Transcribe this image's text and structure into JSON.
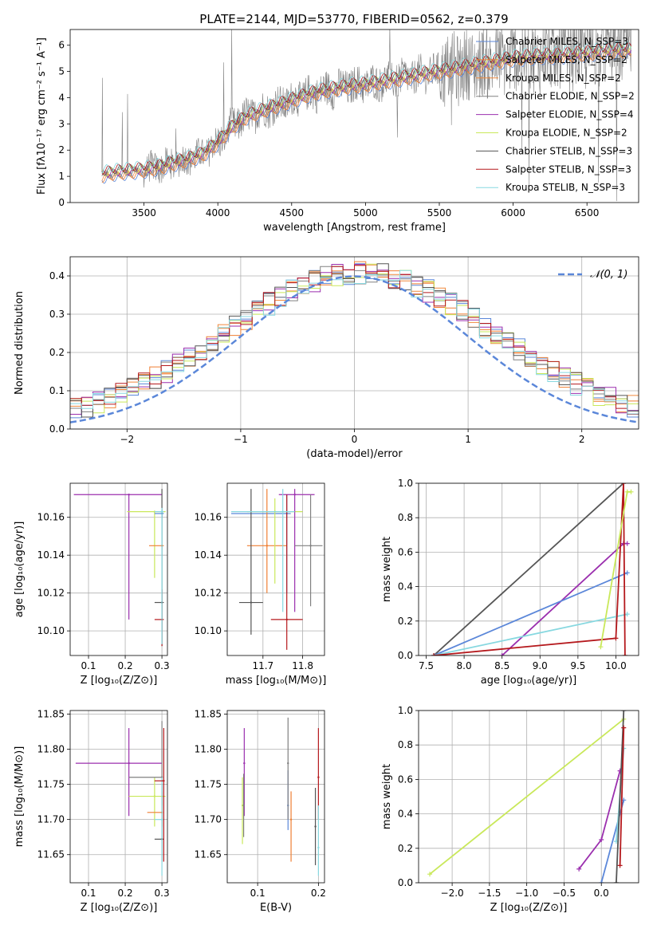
{
  "figure_title": "PLATE=2144, MJD=53770, FIBERID=0562, z=0.379",
  "colors": {
    "chabrier_miles": "#5b87d9",
    "salpeter_miles": "#ef7f33",
    "kroupa_miles": "#f0893d",
    "chabrier_elodie": "#808080",
    "salpeter_elodie": "#9b2fae",
    "kroupa_elodie": "#c9e85a",
    "chabrier_stelib": "#555555",
    "salpeter_stelib": "#b5191d",
    "kroupa_stelib": "#87d8e0",
    "gaussian": "#5b87d9",
    "grid": "#b0b0b0",
    "spectrum": "#808080"
  },
  "chart_data": [
    {
      "type": "line",
      "panel": "spectrum",
      "xlabel": "wavelength [Angstrom, rest frame]",
      "ylabel": "Flux [fλ10⁻¹⁷ erg cm⁻² s⁻¹ A⁻¹]",
      "xlim": [
        3000,
        6850
      ],
      "ylim": [
        0,
        6.6
      ],
      "xticks": [
        "3500",
        "4000",
        "4500",
        "5000",
        "5500",
        "6000",
        "6500"
      ],
      "yticks": [
        "0",
        "1",
        "2",
        "3",
        "4",
        "5",
        "6"
      ],
      "grid": false,
      "legend_position": "top-right",
      "legend": [
        "Chabrier MILES, N_SSP=3",
        "Salpeter MILES, N_SSP=2",
        "Kroupa MILES, N_SSP=2",
        "Chabrier ELODIE, N_SSP=2",
        "Salpeter ELODIE, N_SSP=4",
        "Kroupa ELODIE, N_SSP=2",
        "Chabrier STELIB, N_SSP=3",
        "Salpeter STELIB, N_SSP=3",
        "Kroupa STELIB, N_SSP=3"
      ],
      "model_continuum": {
        "x": [
          3200,
          3300,
          3400,
          3500,
          3600,
          3700,
          3800,
          3900,
          4000,
          4100,
          4200,
          4300,
          4400,
          4500,
          4600,
          4700,
          4800,
          4900,
          5000,
          5100,
          5200,
          5300,
          5400,
          5500,
          5600,
          5700,
          5800,
          5900,
          6000,
          6100,
          6200,
          6300,
          6400,
          6500,
          6600,
          6700,
          6800
        ],
        "y": [
          1.05,
          1.15,
          1.2,
          1.25,
          1.35,
          1.5,
          1.65,
          1.85,
          2.3,
          2.9,
          3.3,
          3.5,
          3.7,
          3.9,
          4.1,
          4.25,
          4.35,
          4.45,
          4.5,
          4.6,
          4.7,
          4.8,
          4.9,
          5.0,
          5.1,
          5.2,
          5.3,
          5.4,
          5.5,
          5.55,
          5.6,
          5.6,
          5.65,
          5.7,
          5.75,
          5.8,
          5.8
        ]
      }
    },
    {
      "type": "bar",
      "panel": "residual_distribution",
      "xlabel": "(data-model)/error",
      "ylabel": "Normed distribution",
      "xlim": [
        -2.5,
        2.5
      ],
      "ylim": [
        0,
        0.45
      ],
      "xticks": [
        "−2",
        "−1",
        "0",
        "1",
        "2"
      ],
      "yticks": [
        "0.0",
        "0.1",
        "0.2",
        "0.3",
        "0.4"
      ],
      "grid": true,
      "legend_position": "top-right",
      "legend": [
        "𝒩(0, 1)"
      ],
      "bin_width": 0.1,
      "gaussian": {
        "mean": 0,
        "sigma": 1
      }
    },
    {
      "type": "scatter",
      "panel": "age_vs_Z",
      "xlabel": "Z [log₁₀(Z/Z⊙)]",
      "ylabel": "age  [log₁₀(age/yr)]",
      "xlim": [
        0.05,
        0.315
      ],
      "ylim": [
        10.087,
        10.178
      ],
      "xticks": [
        "0.1",
        "0.2",
        "0.3"
      ],
      "yticks": [
        "10.10",
        "10.12",
        "10.14",
        "10.16"
      ],
      "grid": true,
      "points": [
        {
          "model": "salpeter_elodie",
          "x": 0.21,
          "y": 10.172,
          "xerr": [
            0.06,
            0.3
          ],
          "yerr": [
            10.106,
            10.172
          ]
        },
        {
          "model": "kroupa_elodie",
          "x": 0.28,
          "y": 10.163,
          "xerr": [
            0.205,
            0.31
          ],
          "yerr": [
            10.128,
            10.163
          ]
        },
        {
          "model": "chabrier_miles",
          "x": 0.3,
          "y": 10.162,
          "xerr": [
            0.28,
            0.305
          ],
          "yerr": [
            10.16,
            10.164
          ]
        },
        {
          "model": "salpeter_miles",
          "x": 0.3,
          "y": 10.145,
          "xerr": [
            0.265,
            0.305
          ],
          "yerr": [
            10.145,
            10.145
          ]
        },
        {
          "model": "chabrier_stelib",
          "x": 0.3,
          "y": 10.115,
          "xerr": [
            0.28,
            0.305
          ],
          "yerr": [
            10.092,
            10.175
          ]
        },
        {
          "model": "salpeter_stelib",
          "x": 0.3,
          "y": 10.106,
          "xerr": [
            0.28,
            0.305
          ],
          "yerr": [
            10.092,
            10.122
          ]
        },
        {
          "model": "kroupa_stelib",
          "x": 0.3,
          "y": 10.163,
          "xerr": [
            0.28,
            0.305
          ],
          "yerr": [
            10.093,
            10.165
          ]
        }
      ]
    },
    {
      "type": "scatter",
      "panel": "age_vs_mass",
      "xlabel": "mass [log₁₀(M/M⊙)]",
      "ylabel": "",
      "xlim": [
        11.61,
        11.855
      ],
      "ylim": [
        10.087,
        10.178
      ],
      "xticks": [
        "11.7",
        "11.8"
      ],
      "yticks": [
        "10.10",
        "10.12",
        "10.14",
        "10.16"
      ],
      "grid": true,
      "points": [
        {
          "model": "chabrier_miles",
          "x": 11.76,
          "y": 10.162,
          "xerr": [
            11.62,
            11.77
          ],
          "yerr": [
            10.12,
            10.172
          ]
        },
        {
          "model": "salpeter_miles",
          "x": 11.71,
          "y": 10.145,
          "xerr": [
            11.66,
            11.76
          ],
          "yerr": [
            10.12,
            10.175
          ]
        },
        {
          "model": "kroupa_elodie",
          "x": 11.73,
          "y": 10.163,
          "xerr": [
            11.66,
            11.8
          ],
          "yerr": [
            10.125,
            10.17
          ]
        },
        {
          "model": "salpeter_elodie",
          "x": 11.78,
          "y": 10.172,
          "xerr": [
            11.74,
            11.83
          ],
          "yerr": [
            10.11,
            10.175
          ]
        },
        {
          "model": "chabrier_stelib",
          "x": 11.67,
          "y": 10.115,
          "xerr": [
            11.64,
            11.7
          ],
          "yerr": [
            10.098,
            10.175
          ]
        },
        {
          "model": "salpeter_stelib",
          "x": 11.76,
          "y": 10.106,
          "xerr": [
            11.72,
            11.8
          ],
          "yerr": [
            10.09,
            10.172
          ]
        },
        {
          "model": "kroupa_stelib",
          "x": 11.75,
          "y": 10.163,
          "xerr": [
            11.62,
            11.78
          ],
          "yerr": [
            10.11,
            10.175
          ]
        },
        {
          "model": "chabrier_elodie",
          "x": 11.82,
          "y": 10.145,
          "xerr": [
            11.78,
            11.85
          ],
          "yerr": [
            10.113,
            10.172
          ]
        }
      ]
    },
    {
      "type": "line",
      "panel": "weight_vs_age",
      "xlabel": "age  [log₁₀(age/yr)]",
      "ylabel": "mass weight",
      "xlim": [
        7.4,
        10.3
      ],
      "ylim": [
        0,
        1.0
      ],
      "xticks": [
        "7.5",
        "8.0",
        "8.5",
        "9.0",
        "9.5",
        "10.0"
      ],
      "yticks": [
        "0.0",
        "0.2",
        "0.4",
        "0.6",
        "0.8",
        "1.0"
      ],
      "grid": true,
      "series": [
        {
          "model": "chabrier_stelib",
          "x": [
            7.6,
            10.1
          ],
          "y": [
            0.0,
            1.0
          ]
        },
        {
          "model": "salpeter_elodie",
          "x": [
            8.5,
            10.1,
            10.15
          ],
          "y": [
            0.0,
            0.65,
            0.65
          ]
        },
        {
          "model": "chabrier_miles",
          "x": [
            7.6,
            10.15
          ],
          "y": [
            0.0,
            0.48
          ]
        },
        {
          "model": "kroupa_stelib",
          "x": [
            7.6,
            10.15
          ],
          "y": [
            0.0,
            0.24
          ]
        },
        {
          "model": "salpeter_stelib",
          "x": [
            7.6,
            10.0,
            10.1,
            10.12
          ],
          "y": [
            0.0,
            0.1,
            1.0,
            0.0
          ]
        },
        {
          "model": "kroupa_elodie",
          "x": [
            9.8,
            10.15,
            10.2
          ],
          "y": [
            0.05,
            0.95,
            0.95
          ]
        }
      ]
    },
    {
      "type": "scatter",
      "panel": "mass_vs_Z",
      "xlabel": "Z [log₁₀(Z/Z⊙)]",
      "ylabel": "mass [log₁₀(M/M⊙)]",
      "xlim": [
        0.05,
        0.315
      ],
      "ylim": [
        11.61,
        11.855
      ],
      "xticks": [
        "0.1",
        "0.2",
        "0.3"
      ],
      "yticks": [
        "11.65",
        "11.70",
        "11.75",
        "11.80",
        "11.85"
      ],
      "grid": true,
      "points": [
        {
          "model": "salpeter_elodie",
          "x": 0.21,
          "y": 11.78,
          "xerr": [
            0.065,
            0.3
          ],
          "yerr": [
            11.705,
            11.83
          ]
        },
        {
          "model": "kroupa_elodie",
          "x": 0.28,
          "y": 11.733,
          "xerr": [
            0.21,
            0.31
          ],
          "yerr": [
            11.69,
            11.76
          ]
        },
        {
          "model": "chabrier_elodie",
          "x": 0.3,
          "y": 11.76,
          "xerr": [
            0.21,
            0.3
          ],
          "yerr": [
            11.72,
            11.84
          ]
        },
        {
          "model": "salpeter_miles",
          "x": 0.3,
          "y": 11.71,
          "xerr": [
            0.26,
            0.3
          ],
          "yerr": [
            11.69,
            11.74
          ]
        },
        {
          "model": "chabrier_stelib",
          "x": 0.3,
          "y": 11.672,
          "xerr": [
            0.28,
            0.305
          ],
          "yerr": [
            11.64,
            11.75
          ]
        },
        {
          "model": "kroupa_stelib",
          "x": 0.3,
          "y": 11.7,
          "xerr": [
            0.28,
            0.305
          ],
          "yerr": [
            11.62,
            11.76
          ]
        },
        {
          "model": "salpeter_stelib",
          "x": 0.305,
          "y": 11.755,
          "xerr": [
            0.28,
            0.305
          ],
          "yerr": [
            11.64,
            11.83
          ]
        }
      ]
    },
    {
      "type": "scatter",
      "panel": "mass_vs_EBV",
      "xlabel": "E(B-V)",
      "ylabel": "",
      "xlim": [
        0.05,
        0.21
      ],
      "ylim": [
        11.61,
        11.855
      ],
      "xticks": [
        "0.1",
        "0.2"
      ],
      "yticks": [
        "11.65",
        "11.70",
        "11.75",
        "11.80",
        "11.85"
      ],
      "grid": true,
      "points": [
        {
          "model": "salpeter_elodie",
          "x": 0.078,
          "y": 11.78,
          "yerr": [
            11.705,
            11.83
          ]
        },
        {
          "model": "kroupa_elodie",
          "x": 0.075,
          "y": 11.72,
          "yerr": [
            11.665,
            11.76
          ]
        },
        {
          "model": "chabrier_elodie",
          "x": 0.077,
          "y": 11.72,
          "yerr": [
            11.675,
            11.765
          ]
        },
        {
          "model": "chabrier_miles",
          "x": 0.15,
          "y": 11.72,
          "yerr": [
            11.685,
            11.77
          ]
        },
        {
          "model": "salpeter_miles",
          "x": 0.155,
          "y": 11.7,
          "yerr": [
            11.64,
            11.74
          ]
        },
        {
          "model": "chabrier_elodie",
          "x": 0.15,
          "y": 11.78,
          "yerr": [
            11.7,
            11.845
          ]
        },
        {
          "model": "chabrier_stelib",
          "x": 0.195,
          "y": 11.69,
          "yerr": [
            11.635,
            11.745
          ]
        },
        {
          "model": "salpeter_stelib",
          "x": 0.2,
          "y": 11.76,
          "yerr": [
            11.7,
            11.83
          ]
        },
        {
          "model": "kroupa_stelib",
          "x": 0.2,
          "y": 11.66,
          "yerr": [
            11.62,
            11.72
          ]
        }
      ]
    },
    {
      "type": "line",
      "panel": "weight_vs_Z",
      "xlabel": "Z [log₁₀(Z/Z⊙)]",
      "ylabel": "mass weight",
      "xlim": [
        -2.45,
        0.5
      ],
      "ylim": [
        0,
        1.0
      ],
      "xticks": [
        "−2.0",
        "−1.5",
        "−1.0",
        "−0.5",
        "0.0"
      ],
      "yticks": [
        "0.0",
        "0.2",
        "0.4",
        "0.6",
        "0.8",
        "1.0"
      ],
      "grid": true,
      "series": [
        {
          "model": "kroupa_elodie",
          "x": [
            -2.3,
            0.3
          ],
          "y": [
            0.05,
            0.95
          ]
        },
        {
          "model": "salpeter_elodie",
          "x": [
            -0.3,
            0.0,
            0.25
          ],
          "y": [
            0.08,
            0.25,
            0.65
          ]
        },
        {
          "model": "chabrier_miles",
          "x": [
            0.0,
            0.3
          ],
          "y": [
            0.0,
            0.48
          ]
        },
        {
          "model": "kroupa_stelib",
          "x": [
            0.2,
            0.3
          ],
          "y": [
            0.24,
            0.78
          ]
        },
        {
          "model": "chabrier_stelib",
          "x": [
            0.2,
            0.3
          ],
          "y": [
            0.0,
            1.0
          ]
        },
        {
          "model": "salpeter_stelib",
          "x": [
            0.25,
            0.3
          ],
          "y": [
            0.1,
            0.9
          ]
        }
      ]
    }
  ]
}
